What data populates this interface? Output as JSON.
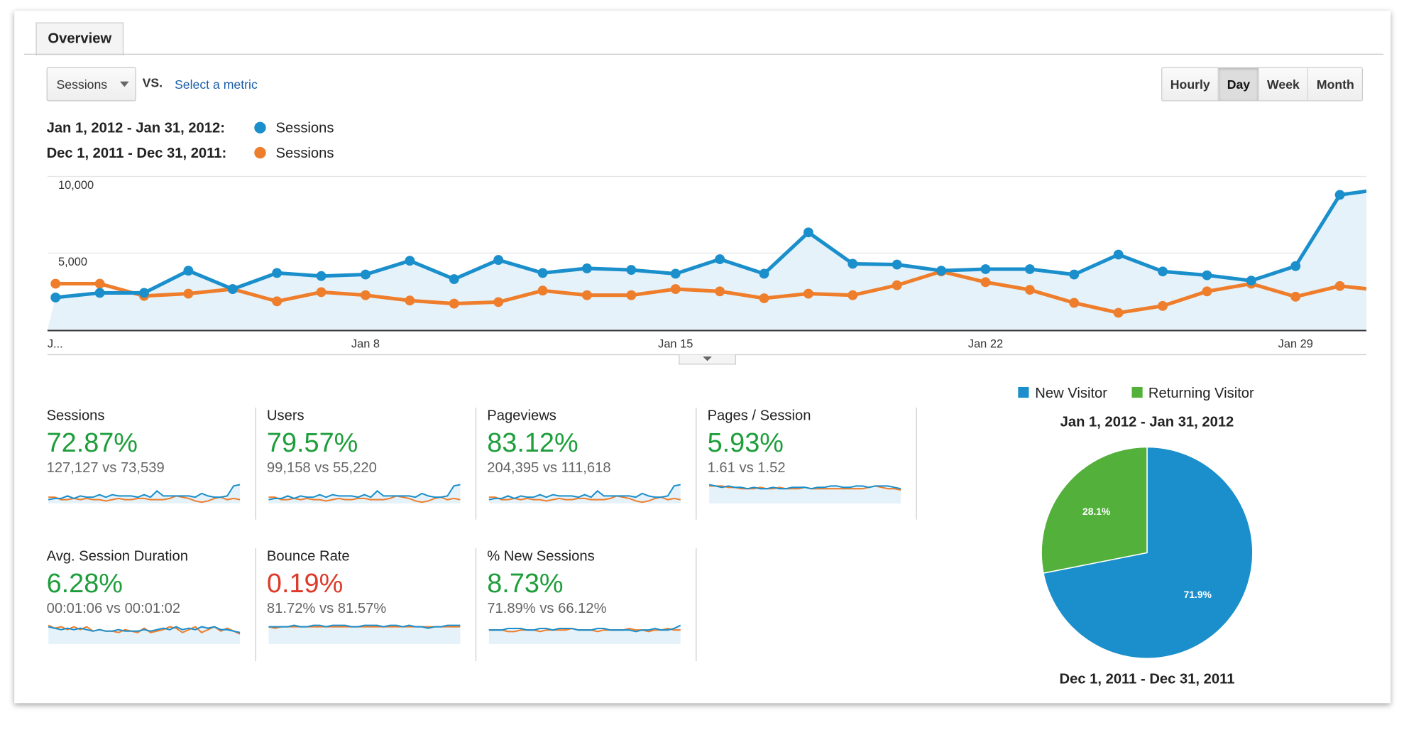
{
  "tabs": [
    {
      "label": "Overview",
      "active": true
    }
  ],
  "toolbar": {
    "metric_select": "Sessions",
    "vs_label": "VS.",
    "select_metric_link": "Select a metric",
    "granularity": [
      {
        "label": "Hourly",
        "active": false
      },
      {
        "label": "Day",
        "active": true
      },
      {
        "label": "Week",
        "active": false
      },
      {
        "label": "Month",
        "active": false
      }
    ]
  },
  "legend": [
    {
      "range": "Jan 1, 2012 - Jan 31, 2012:",
      "series": "Sessions",
      "color": "#1a8fcb"
    },
    {
      "range": "Dec 1, 2011 - Dec 31, 2011:",
      "series": "Sessions",
      "color": "#ee7e2c"
    }
  ],
  "chart_data": [
    {
      "type": "line",
      "ylim": [
        0,
        10000
      ],
      "yticks": [
        "10,000",
        "5,000"
      ],
      "xtick_labels": [
        {
          "label": "J...",
          "index": 0
        },
        {
          "label": "Jan 8",
          "index": 7
        },
        {
          "label": "Jan 15",
          "index": 14
        },
        {
          "label": "Jan 22",
          "index": 21
        },
        {
          "label": "Jan 29",
          "index": 28
        }
      ],
      "grid": true,
      "series": [
        {
          "name": "Sessions",
          "color": "#1a8fcb",
          "area": true,
          "values": [
            2100,
            2400,
            2400,
            3850,
            2650,
            3700,
            3500,
            3600,
            4500,
            3300,
            4550,
            3700,
            4000,
            3900,
            3650,
            4600,
            3650,
            6350,
            4300,
            4250,
            3850,
            3950,
            3950,
            3600,
            4900,
            3800,
            3550,
            3200,
            4150,
            8800,
            9200
          ]
        },
        {
          "name": "Sessions",
          "color": "#ee7e2c",
          "values": [
            3000,
            3000,
            2200,
            2350,
            2650,
            1850,
            2450,
            2250,
            1900,
            1700,
            1800,
            2550,
            2250,
            2250,
            2650,
            2500,
            2050,
            2350,
            2250,
            2900,
            3800,
            3100,
            2600,
            1750,
            1100,
            1550,
            2500,
            3000,
            2150,
            2850,
            2550
          ]
        }
      ]
    },
    {
      "type": "pie",
      "legend": [
        "New Visitor",
        "Returning Visitor"
      ],
      "title": "Jan 1, 2012 - Jan 31, 2012",
      "footer": "Dec 1, 2011 - Dec 31, 2011",
      "slices": [
        {
          "label": "New Visitor",
          "value": 71.9,
          "text": "71.9%",
          "color": "#1a8fcb"
        },
        {
          "label": "Returning Visitor",
          "value": 28.1,
          "text": "28.1%",
          "color": "#53b13b"
        }
      ]
    }
  ],
  "metrics": [
    {
      "title": "Sessions",
      "change": "72.87%",
      "positive": true,
      "compare": "127,127 vs 73,539",
      "spark_a": [
        3,
        4,
        4,
        6,
        4,
        6,
        5,
        5,
        7,
        5,
        7,
        6,
        6,
        6,
        5,
        7,
        5,
        10,
        6,
        6,
        6,
        6,
        6,
        5,
        8,
        6,
        5,
        5,
        6,
        14,
        15
      ],
      "spark_b": [
        5,
        5,
        3,
        3,
        4,
        3,
        4,
        3,
        3,
        2,
        3,
        4,
        3,
        3,
        4,
        4,
        3,
        3,
        3,
        4,
        6,
        5,
        4,
        2,
        1,
        2,
        4,
        5,
        3,
        4,
        3
      ]
    },
    {
      "title": "Users",
      "change": "79.57%",
      "positive": true,
      "compare": "99,158 vs 55,220",
      "spark_a": [
        3,
        4,
        4,
        6,
        4,
        6,
        5,
        5,
        7,
        5,
        7,
        6,
        6,
        6,
        5,
        7,
        5,
        10,
        6,
        6,
        6,
        6,
        6,
        5,
        8,
        6,
        5,
        5,
        6,
        14,
        15
      ],
      "spark_b": [
        5,
        5,
        3,
        3,
        4,
        3,
        4,
        3,
        3,
        2,
        3,
        4,
        3,
        3,
        4,
        4,
        3,
        3,
        3,
        4,
        6,
        5,
        4,
        2,
        1,
        2,
        4,
        5,
        3,
        4,
        3
      ]
    },
    {
      "title": "Pageviews",
      "change": "83.12%",
      "positive": true,
      "compare": "204,395 vs 111,618",
      "spark_a": [
        3,
        4,
        4,
        6,
        4,
        6,
        5,
        5,
        7,
        5,
        7,
        6,
        6,
        6,
        5,
        7,
        5,
        10,
        6,
        6,
        6,
        6,
        6,
        5,
        8,
        6,
        5,
        5,
        6,
        14,
        15
      ],
      "spark_b": [
        5,
        5,
        3,
        3,
        4,
        3,
        4,
        3,
        3,
        2,
        3,
        4,
        3,
        3,
        4,
        4,
        3,
        3,
        3,
        4,
        6,
        5,
        4,
        2,
        1,
        2,
        4,
        5,
        3,
        4,
        3
      ]
    },
    {
      "title": "Pages / Session",
      "change": "5.93%",
      "positive": true,
      "compare": "1.61 vs 1.52",
      "spark_a": [
        14,
        13,
        12,
        13,
        12,
        12,
        11,
        12,
        11,
        11,
        12,
        11,
        11,
        12,
        12,
        12,
        11,
        12,
        12,
        13,
        13,
        12,
        12,
        13,
        13,
        12,
        13,
        13,
        13,
        12,
        11
      ],
      "spark_b": [
        13,
        13,
        13,
        12,
        12,
        11,
        11,
        11,
        12,
        11,
        11,
        12,
        11,
        11,
        11,
        12,
        11,
        11,
        11,
        11,
        11,
        11,
        11,
        11,
        11,
        12,
        13,
        12,
        11,
        11,
        10
      ]
    },
    {
      "title": "Avg. Session Duration",
      "change": "6.28%",
      "positive": true,
      "compare": "00:01:06 vs 00:01:02",
      "spark_a": [
        12,
        11,
        10,
        11,
        10,
        11,
        10,
        9,
        10,
        9,
        9,
        10,
        9,
        9,
        9,
        10,
        9,
        10,
        11,
        10,
        12,
        10,
        11,
        10,
        12,
        11,
        12,
        10,
        10,
        9,
        8
      ],
      "spark_b": [
        13,
        11,
        12,
        10,
        12,
        10,
        12,
        9,
        10,
        9,
        9,
        8,
        10,
        9,
        8,
        11,
        8,
        9,
        10,
        12,
        11,
        8,
        10,
        12,
        8,
        10,
        12,
        9,
        11,
        9,
        7
      ]
    },
    {
      "title": "Bounce Rate",
      "change": "0.19%",
      "positive": false,
      "compare": "81.72% vs 81.57%",
      "spark_a": [
        12,
        12,
        12,
        12,
        13,
        12,
        12,
        13,
        13,
        12,
        13,
        13,
        13,
        12,
        12,
        13,
        13,
        13,
        12,
        13,
        13,
        12,
        13,
        12,
        12,
        11,
        12,
        12,
        13,
        13,
        13
      ],
      "spark_b": [
        12,
        11,
        12,
        12,
        12,
        12,
        12,
        12,
        12,
        12,
        12,
        12,
        12,
        12,
        12,
        12,
        12,
        12,
        12,
        12,
        12,
        12,
        12,
        12,
        12,
        12,
        12,
        12,
        12,
        12,
        12
      ]
    },
    {
      "title": "% New Sessions",
      "change": "8.73%",
      "positive": true,
      "compare": "71.89% vs 66.12%",
      "spark_a": [
        9,
        9,
        9,
        10,
        10,
        10,
        9,
        9,
        10,
        10,
        9,
        10,
        10,
        10,
        9,
        9,
        9,
        10,
        10,
        9,
        9,
        9,
        9,
        8,
        9,
        9,
        10,
        9,
        9,
        10,
        12
      ],
      "spark_b": [
        9,
        9,
        9,
        8,
        8,
        9,
        9,
        9,
        8,
        9,
        9,
        9,
        9,
        10,
        9,
        9,
        9,
        8,
        9,
        9,
        9,
        9,
        10,
        9,
        9,
        8,
        9,
        9,
        10,
        9,
        9
      ]
    }
  ],
  "colors": {
    "positive": "#1e9e3b",
    "negative": "#dd3b2a",
    "area": "#e5f2fa"
  }
}
